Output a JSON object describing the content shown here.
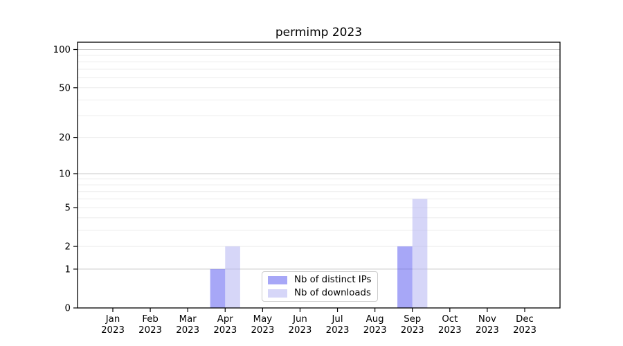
{
  "chart_data": {
    "type": "bar",
    "title": "permimp 2023",
    "categories": [
      "Jan",
      "Feb",
      "Mar",
      "Apr",
      "May",
      "Jun",
      "Jul",
      "Aug",
      "Sep",
      "Oct",
      "Nov",
      "Dec"
    ],
    "category_year": "2023",
    "series": [
      {
        "name": "Nb of distinct IPs",
        "color": "#4f4fef",
        "opacity": 0.5,
        "values": [
          0,
          0,
          0,
          1,
          0,
          0,
          0,
          0,
          2,
          0,
          0,
          0
        ]
      },
      {
        "name": "Nb of downloads",
        "color": "#adadf1",
        "opacity": 0.5,
        "values": [
          0,
          0,
          0,
          2,
          0,
          0,
          0,
          0,
          6,
          0,
          0,
          0
        ]
      }
    ],
    "xlabel": "",
    "ylabel": "",
    "y_scale": "log1p",
    "ylim": [
      0,
      114
    ],
    "y_tick_labels": [
      0,
      1,
      2,
      5,
      10,
      20,
      50,
      100
    ],
    "y_major_gridlines": [
      1,
      10,
      100
    ],
    "y_minor_gridlines": [
      2,
      3,
      4,
      5,
      6,
      7,
      8,
      9,
      20,
      30,
      40,
      50,
      60,
      70,
      80,
      90
    ],
    "grid": true,
    "legend_position": "lower center inside plot"
  },
  "colors": {
    "background": "#ffffff",
    "spine": "#000000",
    "grid_major": "#c9c9c9",
    "grid_minor": "#ececec",
    "tick_text": "#000000",
    "legend_border": "#cccccc"
  }
}
